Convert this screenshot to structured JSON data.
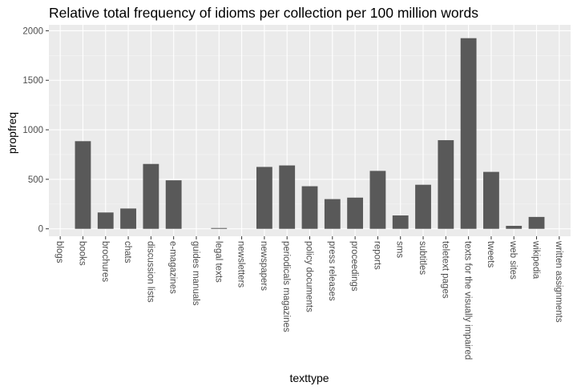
{
  "chart_data": {
    "type": "bar",
    "title": "Relative total frequency of idioms per collection per 100 million words",
    "xlabel": "texttype",
    "ylabel": "propfreq",
    "ylim": [
      -75,
      2060
    ],
    "yticks": [
      0,
      500,
      1000,
      1500,
      2000
    ],
    "grid": true,
    "categories": [
      "blogs",
      "books",
      "brochures",
      "chats",
      "discussion lists",
      "e-magazines",
      "guides manuals",
      "legal texts",
      "newsletters",
      "newspapers",
      "periodicals magazines",
      "policy documents",
      "press releases",
      "proceedings",
      "reports",
      "sms",
      "subtitles",
      "teletext pages",
      "texts for the visually impaired",
      "tweets",
      "web sites",
      "wikipedia",
      "written assignments"
    ],
    "values": [
      0,
      885,
      165,
      205,
      655,
      490,
      0,
      8,
      0,
      625,
      640,
      430,
      300,
      315,
      585,
      135,
      445,
      895,
      1925,
      575,
      30,
      120,
      0
    ],
    "colors": {
      "bar": "#595959",
      "panel": "#ebebeb",
      "grid_major": "#ffffff",
      "grid_minor": "#f5f5f5"
    }
  }
}
